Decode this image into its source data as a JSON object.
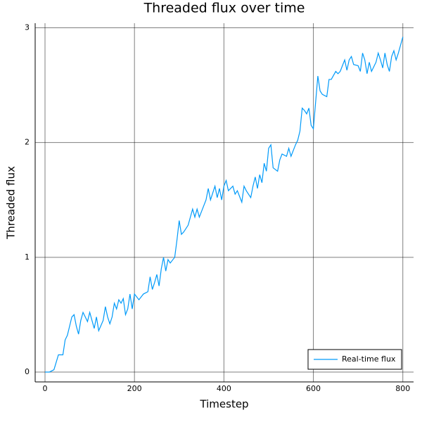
{
  "chart_data": {
    "type": "line",
    "title": "Threaded flux over time",
    "x_label": "Timestep",
    "y_label": "Threaded flux",
    "x": [
      0,
      10,
      20,
      30,
      40,
      45,
      50,
      60,
      65,
      70,
      75,
      80,
      85,
      90,
      95,
      100,
      105,
      110,
      115,
      120,
      130,
      135,
      140,
      145,
      150,
      155,
      160,
      165,
      170,
      175,
      180,
      185,
      190,
      195,
      200,
      210,
      220,
      230,
      235,
      240,
      245,
      250,
      255,
      260,
      265,
      270,
      275,
      280,
      290,
      295,
      300,
      305,
      310,
      320,
      330,
      335,
      340,
      345,
      350,
      360,
      365,
      370,
      380,
      385,
      390,
      395,
      400,
      405,
      410,
      420,
      425,
      430,
      440,
      445,
      450,
      460,
      465,
      470,
      475,
      480,
      485,
      490,
      495,
      500,
      505,
      510,
      520,
      525,
      530,
      540,
      545,
      550,
      560,
      565,
      570,
      575,
      580,
      585,
      590,
      595,
      600,
      605,
      610,
      615,
      620,
      630,
      635,
      640,
      650,
      655,
      660,
      670,
      675,
      680,
      685,
      690,
      700,
      705,
      710,
      715,
      720,
      725,
      730,
      740,
      745,
      750,
      755,
      760,
      765,
      770,
      775,
      780,
      785,
      790,
      795,
      800
    ],
    "series": [
      {
        "name": "Real-time flux",
        "color": "#009af9",
        "values": [
          0,
          0,
          0.02,
          0.15,
          0.15,
          0.28,
          0.32,
          0.48,
          0.5,
          0.4,
          0.33,
          0.45,
          0.52,
          0.48,
          0.44,
          0.52,
          0.45,
          0.38,
          0.48,
          0.36,
          0.45,
          0.57,
          0.48,
          0.42,
          0.48,
          0.6,
          0.55,
          0.63,
          0.6,
          0.64,
          0.5,
          0.55,
          0.68,
          0.55,
          0.68,
          0.63,
          0.68,
          0.7,
          0.83,
          0.72,
          0.78,
          0.85,
          0.75,
          0.9,
          1.0,
          0.88,
          0.98,
          0.95,
          1.0,
          1.15,
          1.32,
          1.2,
          1.22,
          1.28,
          1.42,
          1.35,
          1.42,
          1.35,
          1.4,
          1.5,
          1.6,
          1.5,
          1.62,
          1.52,
          1.6,
          1.5,
          1.62,
          1.67,
          1.58,
          1.62,
          1.55,
          1.58,
          1.48,
          1.62,
          1.58,
          1.52,
          1.62,
          1.7,
          1.6,
          1.72,
          1.65,
          1.82,
          1.75,
          1.95,
          1.98,
          1.78,
          1.75,
          1.85,
          1.9,
          1.88,
          1.95,
          1.88,
          1.98,
          2.02,
          2.1,
          2.3,
          2.28,
          2.25,
          2.3,
          2.15,
          2.12,
          2.35,
          2.58,
          2.45,
          2.42,
          2.4,
          2.55,
          2.55,
          2.62,
          2.6,
          2.62,
          2.72,
          2.63,
          2.72,
          2.75,
          2.68,
          2.67,
          2.62,
          2.78,
          2.72,
          2.6,
          2.7,
          2.62,
          2.7,
          2.78,
          2.72,
          2.65,
          2.78,
          2.68,
          2.62,
          2.75,
          2.8,
          2.72,
          2.78,
          2.85,
          2.92
        ]
      }
    ],
    "xlim": [
      -22,
      824
    ],
    "ylim": [
      -0.086,
      3.04
    ],
    "xticks": [
      0,
      200,
      400,
      600,
      800
    ],
    "yticks": [
      0,
      1,
      2,
      3
    ],
    "grid": true,
    "legend_position": "bottom right"
  }
}
